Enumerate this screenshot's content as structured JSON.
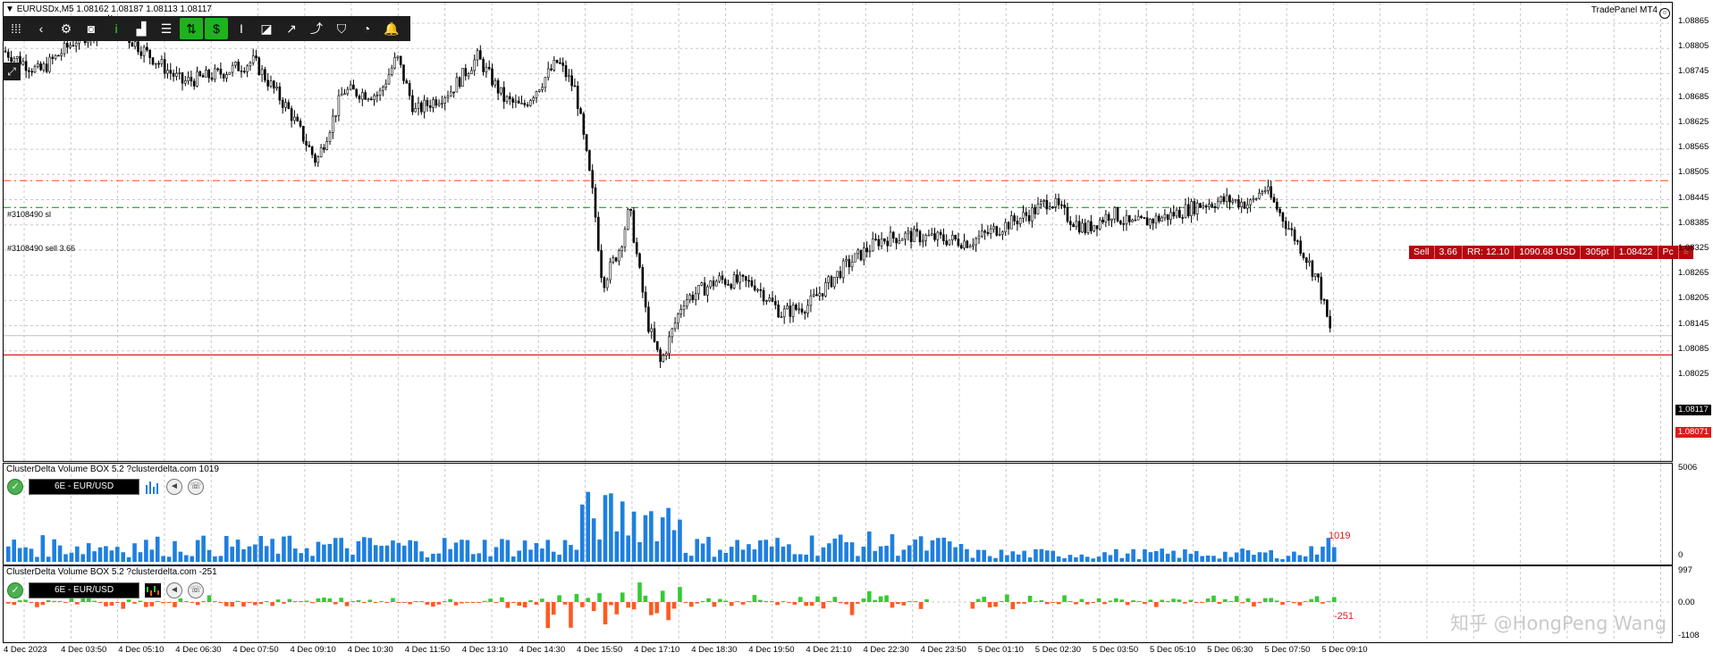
{
  "chart_header": {
    "symbol_text": "EURUSDx,M5",
    "ohlc_text": "1.08162 1.08187 1.08113 1.08117",
    "trade_panel_label": "TradePanel MT4"
  },
  "toolbar": {
    "buttons": [
      {
        "name": "grip-icon",
        "glyph": "⁞⁞⁞"
      },
      {
        "name": "chevron-left-icon",
        "glyph": "‹"
      },
      {
        "name": "gear-icon",
        "glyph": "⚙"
      },
      {
        "name": "camera-icon",
        "glyph": "◙"
      },
      {
        "name": "info-icon",
        "glyph": "i"
      },
      {
        "name": "bar-chart-icon",
        "glyph": "▟"
      },
      {
        "name": "list-icon",
        "glyph": "☰"
      },
      {
        "name": "trade-up-down-icon",
        "glyph": "⇅"
      },
      {
        "name": "dollar-icon",
        "glyph": "$"
      },
      {
        "name": "text-cursor-icon",
        "glyph": "I"
      },
      {
        "name": "ruler-icon",
        "glyph": "◪"
      },
      {
        "name": "trend-icon",
        "glyph": "↗"
      },
      {
        "name": "trend-line-icon",
        "glyph": "⤴"
      },
      {
        "name": "shield-icon",
        "glyph": "⛉"
      },
      {
        "name": "pie-icon",
        "glyph": "◔"
      },
      {
        "name": "bell-icon",
        "glyph": "🔔"
      }
    ]
  },
  "orders": {
    "sl_label": "#3108490 sl",
    "sell_label": "#3108490 sell 3.66",
    "sl_color": "#ff6a3d",
    "sell_color": "#1c9e1c"
  },
  "sell_panel": {
    "side": "Sell",
    "lots": "3.66",
    "rr": "RR: 12.10",
    "profit": "1090.68 USD",
    "points": "305pt",
    "price": "1.08422",
    "pc": "Pc",
    "menu": "≡"
  },
  "price_axis": {
    "ticks": [
      "1.08865",
      "1.08805",
      "1.08745",
      "1.08685",
      "1.08625",
      "1.08565",
      "1.08505",
      "1.08445",
      "1.08385",
      "1.08325",
      "1.08265",
      "1.08205",
      "1.08145",
      "1.08085",
      "1.08025"
    ],
    "current_price": "1.08117",
    "alert_price": "1.08071"
  },
  "volume_indicator": {
    "title": "ClusterDelta Volume BOX 5.2 ?clusterdelta.com 1019",
    "instrument": "6E - EUR/USD",
    "last_value": "1019",
    "axis_top": "5006",
    "axis_bottom": "0",
    "bar_color": "#1e7fe0"
  },
  "delta_indicator": {
    "title": "ClusterDelta Volume BOX 5.2 ?clusterdelta.com -251",
    "instrument": "6E - EUR/USD",
    "last_value": "-251",
    "axis_top": "997",
    "axis_mid": "0.00",
    "axis_bottom": "-1108",
    "pos_color": "#33cc33",
    "neg_color": "#ff5a1f"
  },
  "time_axis": {
    "labels": [
      "4 Dec 2023",
      "4 Dec 03:50",
      "4 Dec 05:10",
      "4 Dec 06:30",
      "4 Dec 07:50",
      "4 Dec 09:10",
      "4 Dec 10:30",
      "4 Dec 11:50",
      "4 Dec 13:10",
      "4 Dec 14:30",
      "4 Dec 15:50",
      "4 Dec 17:10",
      "4 Dec 18:30",
      "4 Dec 19:50",
      "4 Dec 21:10",
      "4 Dec 22:30",
      "4 Dec 23:50",
      "5 Dec 01:10",
      "5 Dec 02:30",
      "5 Dec 03:50",
      "5 Dec 05:10",
      "5 Dec 06:30",
      "5 Dec 07:50",
      "5 Dec 09:10"
    ]
  },
  "watermark": "知乎 @HongPeng Wang",
  "price_series": {
    "anchors": [
      [
        0,
        1.08795
      ],
      [
        40,
        1.08745
      ],
      [
        80,
        1.0882
      ],
      [
        120,
        1.0886
      ],
      [
        160,
        1.0879
      ],
      [
        200,
        1.0872
      ],
      [
        240,
        1.0874
      ],
      [
        280,
        1.0877
      ],
      [
        320,
        1.0865
      ],
      [
        350,
        1.0853
      ],
      [
        380,
        1.087
      ],
      [
        420,
        1.0869
      ],
      [
        440,
        1.0878
      ],
      [
        460,
        1.0865
      ],
      [
        500,
        1.087
      ],
      [
        530,
        1.0878
      ],
      [
        560,
        1.0868
      ],
      [
        580,
        1.0866
      ],
      [
        620,
        1.0877
      ],
      [
        640,
        1.087
      ],
      [
        660,
        1.0844
      ],
      [
        670,
        1.0824
      ],
      [
        690,
        1.0833
      ],
      [
        700,
        1.0842
      ],
      [
        720,
        1.0815
      ],
      [
        735,
        1.0805
      ],
      [
        760,
        1.082
      ],
      [
        800,
        1.0825
      ],
      [
        840,
        1.0824
      ],
      [
        870,
        1.0817
      ],
      [
        900,
        1.0819
      ],
      [
        940,
        1.0828
      ],
      [
        980,
        1.08345
      ],
      [
        1010,
        1.08355
      ],
      [
        1040,
        1.0835
      ],
      [
        1080,
        1.0834
      ],
      [
        1120,
        1.0838
      ],
      [
        1150,
        1.0841
      ],
      [
        1170,
        1.0844
      ],
      [
        1190,
        1.084
      ],
      [
        1210,
        1.0837
      ],
      [
        1240,
        1.0841
      ],
      [
        1260,
        1.0838
      ],
      [
        1300,
        1.084
      ],
      [
        1340,
        1.0843
      ],
      [
        1370,
        1.0844
      ],
      [
        1395,
        1.0843
      ],
      [
        1410,
        1.0847
      ],
      [
        1430,
        1.084
      ],
      [
        1450,
        1.0833
      ],
      [
        1470,
        1.0825
      ],
      [
        1485,
        1.08117
      ]
    ]
  }
}
